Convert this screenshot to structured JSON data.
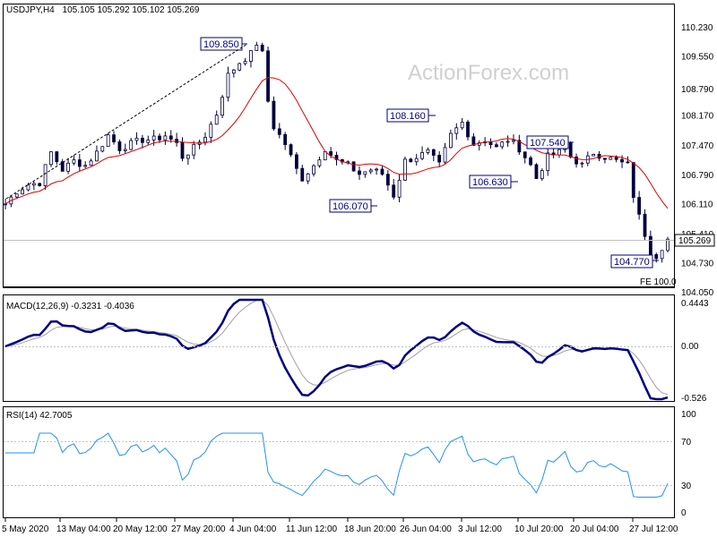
{
  "header": {
    "symbol": "USDJPY,H4",
    "ohlc": "105.105 105.292 105.102 105.269"
  },
  "watermark": "ActionForex.com",
  "colors": {
    "candle": "#00003c",
    "ma": "#e00000",
    "macd": "#000080",
    "signal": "#a0a0a0",
    "rsi": "#1e90ff",
    "label": "#000080"
  },
  "chart_data": [
    {
      "type": "candlestick",
      "panel": "price",
      "ylim": [
        104.05,
        110.5
      ],
      "yticks": [
        "110.230",
        "109.550",
        "108.790",
        "108.170",
        "107.470",
        "106.790",
        "106.110",
        "105.410",
        "104.730",
        "104.050"
      ],
      "xticks": [
        "5 May 2020",
        "13 May 04:00",
        "20 May 12:00",
        "27 May 20:00",
        "4 Jun 04:00",
        "11 Jun 12:00",
        "18 Jun 20:00",
        "26 Jun 04:00",
        "3 Jul 12:00",
        "10 Jul 20:00",
        "20 Jul 04:00",
        "27 Jul 12:00"
      ],
      "current_price": "105.269",
      "annotations": [
        "109.850",
        "106.070",
        "108.160",
        "106.630",
        "107.540",
        "104.770"
      ],
      "fe_label": "FE 100.0",
      "price_path": [
        [
          0,
          106.1
        ],
        [
          2,
          106.4
        ],
        [
          4,
          106.55
        ],
        [
          6,
          106.6
        ],
        [
          8,
          107.3
        ],
        [
          10,
          106.9
        ],
        [
          12,
          107.1
        ],
        [
          14,
          107.0
        ],
        [
          16,
          107.3
        ],
        [
          18,
          107.7
        ],
        [
          20,
          107.4
        ],
        [
          22,
          107.5
        ],
        [
          24,
          107.6
        ],
        [
          26,
          107.6
        ],
        [
          28,
          107.7
        ],
        [
          30,
          107.5
        ],
        [
          31,
          107.2
        ],
        [
          33,
          107.4
        ],
        [
          35,
          107.7
        ],
        [
          37,
          108.2
        ],
        [
          39,
          109.1
        ],
        [
          41,
          109.4
        ],
        [
          43,
          109.6
        ],
        [
          44,
          109.85
        ],
        [
          45,
          109.6
        ],
        [
          46,
          108.5
        ],
        [
          47,
          107.9
        ],
        [
          49,
          107.5
        ],
        [
          51,
          106.9
        ],
        [
          52,
          106.7
        ],
        [
          54,
          107.0
        ],
        [
          56,
          107.4
        ],
        [
          58,
          107.1
        ],
        [
          60,
          107.0
        ],
        [
          62,
          106.8
        ],
        [
          64,
          106.9
        ],
        [
          66,
          106.8
        ],
        [
          68,
          106.3
        ],
        [
          70,
          107.1
        ],
        [
          72,
          107.2
        ],
        [
          74,
          107.3
        ],
        [
          76,
          107.0
        ],
        [
          78,
          107.7
        ],
        [
          80,
          108.0
        ],
        [
          82,
          107.5
        ],
        [
          84,
          107.6
        ],
        [
          86,
          107.4
        ],
        [
          88,
          107.6
        ],
        [
          90,
          107.4
        ],
        [
          92,
          107.0
        ],
        [
          93,
          106.7
        ],
        [
          95,
          107.2
        ],
        [
          97,
          107.3
        ],
        [
          98,
          107.5
        ],
        [
          99,
          107.2
        ],
        [
          101,
          107.0
        ],
        [
          103,
          107.3
        ],
        [
          105,
          107.2
        ],
        [
          107,
          107.1
        ],
        [
          109,
          107.0
        ],
        [
          110,
          106.3
        ],
        [
          111,
          105.8
        ],
        [
          112,
          105.4
        ],
        [
          113,
          105.0
        ],
        [
          114,
          104.9
        ],
        [
          115,
          105.1
        ],
        [
          116,
          105.27
        ]
      ]
    },
    {
      "type": "line",
      "panel": "macd",
      "indicator": "MACD(12,26,9) -0.3231 -0.4036",
      "ylim": [
        -0.65,
        0.5
      ],
      "yticks": [
        "0.4443",
        "0.00",
        "-0.526"
      ]
    },
    {
      "type": "line",
      "panel": "rsi",
      "indicator": "RSI(14) 42.7005",
      "ylim": [
        0,
        100
      ],
      "yticks": [
        "100",
        "70",
        "30",
        "0"
      ]
    }
  ]
}
